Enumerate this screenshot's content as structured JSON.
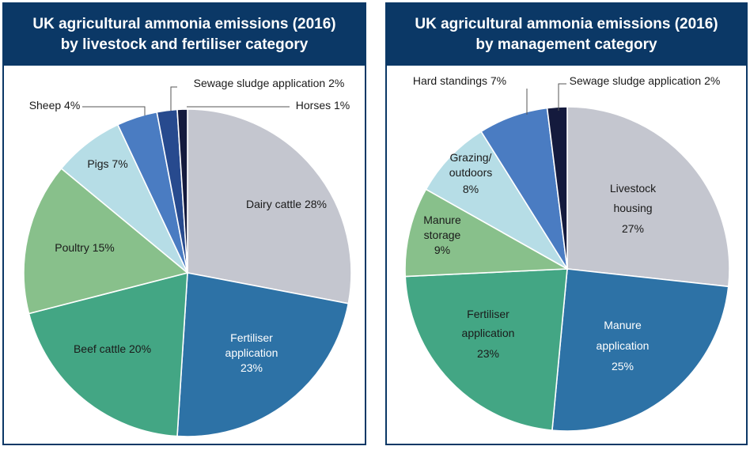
{
  "chart_data": [
    {
      "type": "pie",
      "title": [
        "UK agricultural ammonia emissions (2016)",
        "by livestock and fertiliser category"
      ],
      "slices": [
        {
          "label": "Dairy cattle",
          "value": 28,
          "display": "Dairy cattle 28%",
          "color": "#c4c6cf",
          "text_color": "#1a1a1a"
        },
        {
          "label": "Fertiliser application",
          "value": 23,
          "display": "Fertiliser application 23%",
          "color": "#2d72a6",
          "text_color": "#ffffff"
        },
        {
          "label": "Beef cattle",
          "value": 20,
          "display": "Beef cattle 20%",
          "color": "#43a684",
          "text_color": "#1a1a1a"
        },
        {
          "label": "Poultry",
          "value": 15,
          "display": "Poultry 15%",
          "color": "#88c08b",
          "text_color": "#1a1a1a"
        },
        {
          "label": "Pigs",
          "value": 7,
          "display": "Pigs 7%",
          "color": "#b6dde6",
          "text_color": "#1a1a1a"
        },
        {
          "label": "Sheep",
          "value": 4,
          "display": "Sheep 4%",
          "color": "#4a7cc2",
          "text_color": "#1a1a1a"
        },
        {
          "label": "Sewage sludge application",
          "value": 2,
          "display": "Sewage sludge application 2%",
          "color": "#274a8e",
          "text_color": "#1a1a1a"
        },
        {
          "label": "Horses",
          "value": 1,
          "display": "Horses 1%",
          "color": "#141a3d",
          "text_color": "#1a1a1a"
        }
      ]
    },
    {
      "type": "pie",
      "title": [
        "UK agricultural ammonia emissions (2016)",
        "by management category"
      ],
      "slices": [
        {
          "label": "Livestock housing",
          "value": 27,
          "display": "Livestock housing 27%",
          "color": "#c4c6cf",
          "text_color": "#1a1a1a"
        },
        {
          "label": "Manure application",
          "value": 25,
          "display": "Manure application 25%",
          "color": "#2d72a6",
          "text_color": "#ffffff"
        },
        {
          "label": "Fertiliser application",
          "value": 23,
          "display": "Fertiliser application 23%",
          "color": "#43a684",
          "text_color": "#1a1a1a"
        },
        {
          "label": "Manure storage",
          "value": 9,
          "display": "Manure storage 9%",
          "color": "#88c08b",
          "text_color": "#1a1a1a"
        },
        {
          "label": "Grazing/ outdoors",
          "value": 8,
          "display": "Grazing/ outdoors 8%",
          "color": "#b6dde6",
          "text_color": "#1a1a1a"
        },
        {
          "label": "Hard standings",
          "value": 7,
          "display": "Hard standings 7%",
          "color": "#4a7cc2",
          "text_color": "#1a1a1a"
        },
        {
          "label": "Sewage sludge application",
          "value": 2,
          "display": "Sewage sludge application 2%",
          "color": "#141a3d",
          "text_color": "#1a1a1a"
        }
      ]
    }
  ]
}
